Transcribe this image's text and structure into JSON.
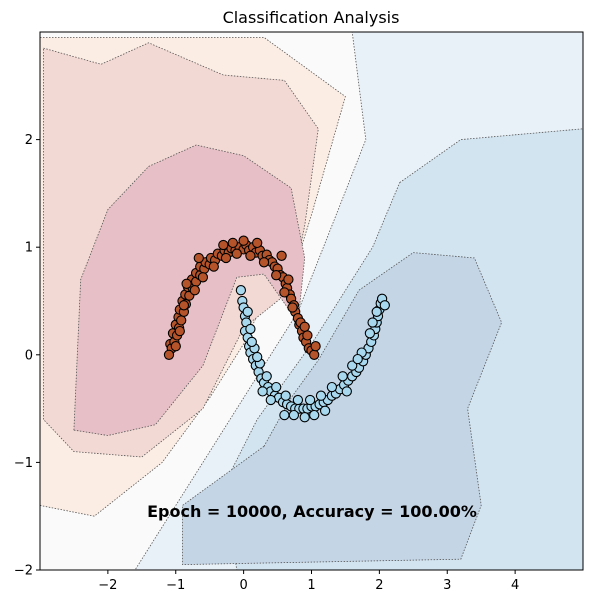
{
  "chart_data": {
    "type": "scatter",
    "title": "Classification Analysis",
    "xlabel": "",
    "ylabel": "",
    "xlim": [
      -3,
      5
    ],
    "ylim": [
      -2,
      3
    ],
    "xticks": [
      -2,
      -1,
      0,
      1,
      2,
      3,
      4
    ],
    "yticks": [
      -2,
      -1,
      0,
      1,
      2
    ],
    "grid": false,
    "annotation": "Epoch = 10000, Accuracy = 100.00%",
    "background": "decision-regions",
    "colors": {
      "class0_point": "#b5532a",
      "class1_point": "#a8d8ee",
      "point_edge": "#000000",
      "region_orange_light": "#fcede4",
      "region_orange_mid": "#f3d9d4",
      "region_orange_dark": "#e6c0c6",
      "region_neutral": "#fafafa",
      "region_blue_light": "#e9f1f8",
      "region_blue_mid": "#d2e4f0",
      "region_blue_dark": "#c4d5e6"
    },
    "series": [
      {
        "class": 0,
        "points": [
          [
            -1.08,
            0.1
          ],
          [
            -1.06,
            0.06
          ],
          [
            -1.02,
            0.12
          ],
          [
            -1.04,
            0.2
          ],
          [
            -0.98,
            0.18
          ],
          [
            -1.0,
            0.28
          ],
          [
            -0.95,
            0.25
          ],
          [
            -0.96,
            0.35
          ],
          [
            -0.92,
            0.32
          ],
          [
            -0.94,
            0.42
          ],
          [
            -0.88,
            0.4
          ],
          [
            -0.9,
            0.5
          ],
          [
            -0.85,
            0.47
          ],
          [
            -0.86,
            0.56
          ],
          [
            -0.8,
            0.55
          ],
          [
            -0.82,
            0.63
          ],
          [
            -0.75,
            0.62
          ],
          [
            -0.76,
            0.7
          ],
          [
            -0.7,
            0.68
          ],
          [
            -0.7,
            0.76
          ],
          [
            -0.64,
            0.74
          ],
          [
            -0.64,
            0.82
          ],
          [
            -0.58,
            0.8
          ],
          [
            -0.56,
            0.86
          ],
          [
            -0.5,
            0.84
          ],
          [
            -0.48,
            0.9
          ],
          [
            -0.42,
            0.88
          ],
          [
            -0.38,
            0.94
          ],
          [
            -0.32,
            0.92
          ],
          [
            -0.28,
            0.97
          ],
          [
            -0.22,
            0.95
          ],
          [
            -0.18,
            0.99
          ],
          [
            -0.12,
            0.97
          ],
          [
            -0.06,
            1.0
          ],
          [
            0.0,
            0.98
          ],
          [
            0.04,
            1.02
          ],
          [
            0.08,
            0.97
          ],
          [
            0.14,
            1.0
          ],
          [
            0.18,
            0.95
          ],
          [
            0.24,
            0.97
          ],
          [
            0.28,
            0.92
          ],
          [
            0.34,
            0.93
          ],
          [
            0.38,
            0.88
          ],
          [
            0.42,
            0.86
          ],
          [
            0.46,
            0.82
          ],
          [
            0.5,
            0.8
          ],
          [
            0.54,
            0.74
          ],
          [
            0.58,
            0.72
          ],
          [
            0.62,
            0.66
          ],
          [
            0.64,
            0.62
          ],
          [
            0.68,
            0.56
          ],
          [
            0.7,
            0.52
          ],
          [
            0.74,
            0.46
          ],
          [
            0.76,
            0.4
          ],
          [
            0.8,
            0.34
          ],
          [
            0.82,
            0.28
          ],
          [
            0.86,
            0.22
          ],
          [
            0.88,
            0.16
          ],
          [
            0.92,
            0.12
          ],
          [
            0.96,
            0.06
          ],
          [
            1.0,
            0.04
          ],
          [
            1.04,
            0.0
          ],
          [
            -1.0,
            0.08
          ],
          [
            -0.94,
            0.22
          ],
          [
            -0.88,
            0.46
          ],
          [
            -0.72,
            0.6
          ],
          [
            -0.6,
            0.72
          ],
          [
            -0.44,
            0.82
          ],
          [
            -0.26,
            0.9
          ],
          [
            -0.1,
            0.94
          ],
          [
            0.1,
            0.92
          ],
          [
            0.3,
            0.86
          ],
          [
            0.48,
            0.74
          ],
          [
            0.6,
            0.58
          ],
          [
            0.72,
            0.44
          ],
          [
            0.84,
            0.3
          ],
          [
            0.94,
            0.18
          ],
          [
            -0.3,
            1.02
          ],
          [
            0.2,
            1.04
          ],
          [
            0.56,
            0.92
          ],
          [
            -0.66,
            0.9
          ],
          [
            -0.84,
            0.66
          ],
          [
            0.66,
            0.7
          ],
          [
            0.9,
            0.26
          ],
          [
            1.06,
            0.08
          ],
          [
            -1.1,
            0.0
          ],
          [
            0.0,
            1.06
          ],
          [
            -0.16,
            1.04
          ]
        ]
      },
      {
        "class": 1,
        "points": [
          [
            -0.02,
            0.5
          ],
          [
            0.0,
            0.44
          ],
          [
            0.02,
            0.36
          ],
          [
            0.04,
            0.3
          ],
          [
            0.02,
            0.22
          ],
          [
            0.06,
            0.16
          ],
          [
            0.08,
            0.08
          ],
          [
            0.1,
            0.02
          ],
          [
            0.14,
            -0.04
          ],
          [
            0.18,
            -0.1
          ],
          [
            0.22,
            -0.16
          ],
          [
            0.26,
            -0.22
          ],
          [
            0.3,
            -0.26
          ],
          [
            0.36,
            -0.3
          ],
          [
            0.4,
            -0.34
          ],
          [
            0.46,
            -0.38
          ],
          [
            0.52,
            -0.4
          ],
          [
            0.58,
            -0.44
          ],
          [
            0.64,
            -0.46
          ],
          [
            0.7,
            -0.48
          ],
          [
            0.76,
            -0.5
          ],
          [
            0.82,
            -0.5
          ],
          [
            0.88,
            -0.5
          ],
          [
            0.94,
            -0.5
          ],
          [
            1.0,
            -0.48
          ],
          [
            1.06,
            -0.48
          ],
          [
            1.12,
            -0.46
          ],
          [
            1.18,
            -0.44
          ],
          [
            1.24,
            -0.42
          ],
          [
            1.3,
            -0.38
          ],
          [
            1.36,
            -0.36
          ],
          [
            1.42,
            -0.32
          ],
          [
            1.48,
            -0.28
          ],
          [
            1.54,
            -0.24
          ],
          [
            1.6,
            -0.2
          ],
          [
            1.66,
            -0.16
          ],
          [
            1.7,
            -0.12
          ],
          [
            1.76,
            -0.06
          ],
          [
            1.8,
            0.0
          ],
          [
            1.84,
            0.06
          ],
          [
            1.88,
            0.12
          ],
          [
            1.92,
            0.18
          ],
          [
            1.94,
            0.24
          ],
          [
            1.96,
            0.3
          ],
          [
            1.98,
            0.36
          ],
          [
            2.0,
            0.42
          ],
          [
            2.02,
            0.48
          ],
          [
            2.04,
            0.52
          ],
          [
            0.06,
            0.4
          ],
          [
            0.1,
            0.24
          ],
          [
            0.16,
            0.06
          ],
          [
            0.24,
            -0.08
          ],
          [
            0.34,
            -0.2
          ],
          [
            0.48,
            -0.3
          ],
          [
            0.62,
            -0.38
          ],
          [
            0.8,
            -0.42
          ],
          [
            0.98,
            -0.42
          ],
          [
            1.14,
            -0.38
          ],
          [
            1.3,
            -0.3
          ],
          [
            1.46,
            -0.2
          ],
          [
            1.6,
            -0.1
          ],
          [
            1.74,
            0.02
          ],
          [
            1.86,
            0.2
          ],
          [
            1.96,
            0.4
          ],
          [
            0.6,
            -0.56
          ],
          [
            0.74,
            -0.56
          ],
          [
            0.9,
            -0.58
          ],
          [
            1.04,
            -0.56
          ],
          [
            -0.04,
            0.6
          ],
          [
            0.2,
            -0.02
          ],
          [
            0.4,
            -0.42
          ],
          [
            1.2,
            -0.52
          ],
          [
            1.52,
            -0.34
          ],
          [
            1.9,
            0.3
          ],
          [
            2.08,
            0.46
          ],
          [
            0.12,
            0.12
          ],
          [
            0.28,
            -0.34
          ],
          [
            1.68,
            -0.04
          ]
        ]
      }
    ]
  }
}
